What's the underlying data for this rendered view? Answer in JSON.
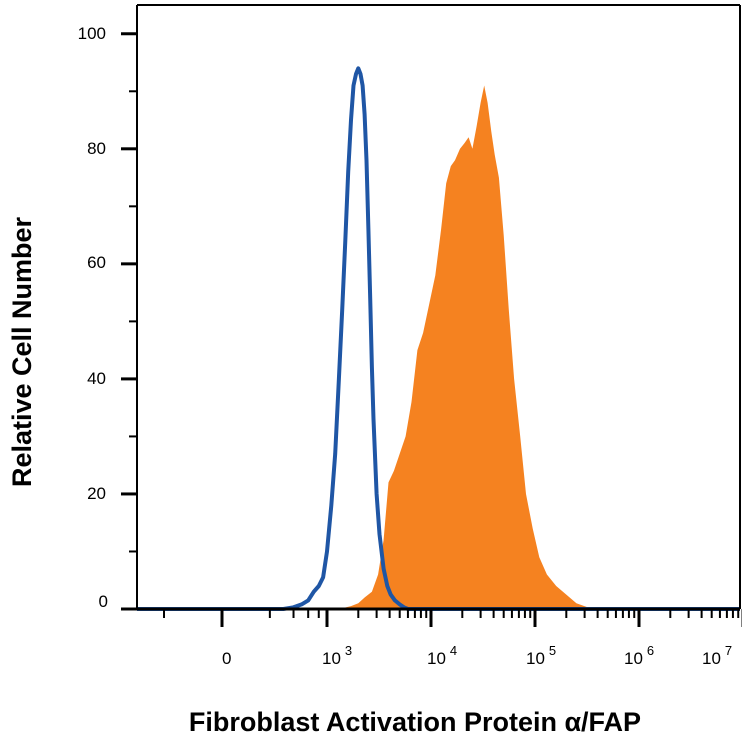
{
  "chart_data": {
    "type": "area",
    "title": "",
    "xlabel": "Fibroblast Activation Protein α/FAP",
    "ylabel": "Relative Cell Number",
    "x_scale": "biexponential",
    "xlim": [
      -1500,
      10000000
    ],
    "ylim": [
      0,
      105
    ],
    "yticks": [
      0,
      20,
      40,
      60,
      80,
      100
    ],
    "xticks": [
      {
        "base": "0",
        "exp": "",
        "value": 0
      },
      {
        "base": "10",
        "exp": "3",
        "value": 1000
      },
      {
        "base": "10",
        "exp": "4",
        "value": 10000
      },
      {
        "base": "10",
        "exp": "5",
        "value": 100000
      },
      {
        "base": "10",
        "exp": "6",
        "value": 1000000
      },
      {
        "base": "10",
        "exp": "7",
        "value": 10000000
      }
    ],
    "grid": false,
    "series": [
      {
        "style": "filled",
        "color": "#f58220",
        "x": [
          400,
          1300,
          1700,
          2000,
          2300,
          2700,
          3100,
          3500,
          3900,
          4400,
          5000,
          5700,
          6500,
          7400,
          8400,
          9600,
          11000,
          12500,
          14000,
          15500,
          17000,
          19000,
          21000,
          23000,
          25000,
          27500,
          30000,
          32500,
          35000,
          38000,
          41000,
          45000,
          50000,
          56000,
          63000,
          72000,
          82000,
          95000,
          110000,
          130000,
          160000,
          200000,
          250000,
          320000,
          400000
        ],
        "y": [
          0,
          0,
          0.5,
          1,
          2,
          3,
          6,
          12,
          22,
          24,
          27,
          30,
          36,
          45,
          48,
          53,
          58,
          66,
          74,
          77,
          78,
          80,
          81,
          82,
          80,
          84,
          88,
          91,
          88,
          83,
          79,
          75,
          65,
          52,
          40,
          30,
          20,
          14,
          9,
          6,
          4,
          2.5,
          1,
          0.3,
          0
        ]
      },
      {
        "style": "line",
        "color": "#1f56a5",
        "x": [
          -1500,
          300,
          400,
          500,
          600,
          700,
          800,
          900,
          1000,
          1100,
          1200,
          1300,
          1400,
          1500,
          1600,
          1700,
          1800,
          1900,
          2000,
          2100,
          2200,
          2300,
          2400,
          2500,
          2600,
          2700,
          2800,
          3000,
          3200,
          3500,
          3800,
          4100,
          4500,
          5000,
          5500,
          6000,
          7000,
          9000,
          20000,
          100000,
          10000000
        ],
        "y": [
          0,
          0,
          0.3,
          0.8,
          1.5,
          3,
          4,
          5.5,
          10,
          18,
          27,
          40,
          52,
          64,
          76,
          85,
          91,
          93,
          94,
          93,
          91,
          86,
          78,
          66,
          54,
          42,
          33,
          20,
          13,
          7,
          4,
          2.5,
          1.5,
          0.8,
          0.3,
          0,
          0,
          0,
          0,
          0,
          0
        ]
      }
    ]
  }
}
